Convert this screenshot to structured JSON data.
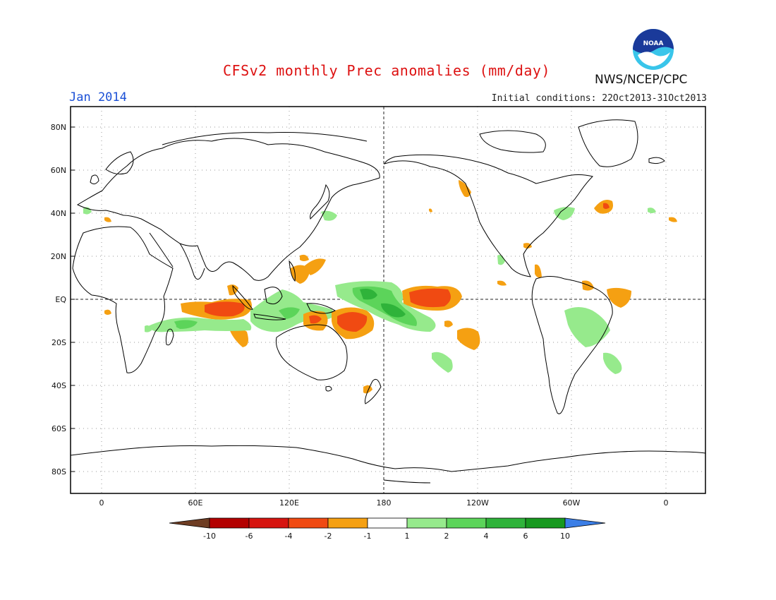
{
  "header": {
    "title": "CFSv2 monthly Prec anomalies (mm/day)",
    "month": "Jan 2014",
    "initial_conditions": "Initial conditions: 22Oct2013-31Oct2013",
    "agency": "NWS/NCEP/CPC",
    "logo_text": "NOAA"
  },
  "axes": {
    "lat_labels": [
      "80N",
      "60N",
      "40N",
      "20N",
      "EQ",
      "20S",
      "40S",
      "60S",
      "80S"
    ],
    "lat_values": [
      80,
      60,
      40,
      20,
      0,
      -20,
      -40,
      -60,
      -80
    ],
    "lon_labels": [
      "0",
      "60E",
      "120E",
      "180",
      "120W",
      "60W",
      "0"
    ],
    "lon_values": [
      0,
      60,
      120,
      180,
      240,
      300,
      360
    ]
  },
  "colorbar": {
    "labels": [
      "-10",
      "-6",
      "-4",
      "-2",
      "-1",
      "1",
      "2",
      "4",
      "6",
      "10"
    ],
    "colors": {
      "lt_minus10": "#6e3d23",
      "m10_m6": "#b30000",
      "m6_m4": "#d6140f",
      "m4_m2": "#f04a12",
      "m2_m1": "#f5a012",
      "m1_1": "#ffffff",
      "1_2": "#96ea8c",
      "2_4": "#5cd45a",
      "4_6": "#2fb33a",
      "6_10": "#17991f",
      "gt_10": "#3b7ee6"
    }
  },
  "colors": {
    "title": "#dd1111",
    "month": "#1a4fd6",
    "noaa_blue": "#1a3a9a",
    "noaa_cyan": "#39c5ea"
  }
}
